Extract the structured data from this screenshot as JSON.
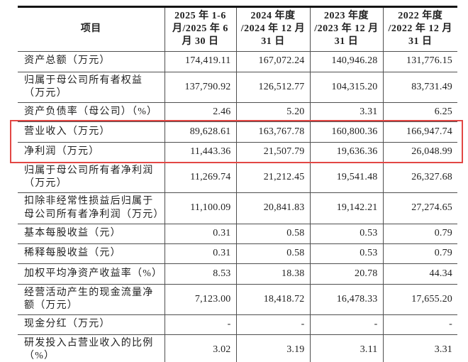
{
  "table": {
    "header": {
      "item_col": "项目",
      "period_cols": [
        "2025 年 1-6 月/2025 年 6 月 30 日",
        "2024 年度 /2024 年 12 月 31 日",
        "2023 年度 /2023 年 12 月 31 日",
        "2022 年度 /2022 年 12 月 31 日"
      ]
    },
    "rows": [
      {
        "label": "资产总额（万元）",
        "values": [
          "174,419.11",
          "167,072.24",
          "140,946.28",
          "131,776.15"
        ],
        "highlighted": false
      },
      {
        "label": "归属于母公司所有者权益（万元）",
        "values": [
          "137,790.92",
          "126,512.77",
          "104,315.20",
          "83,731.49"
        ],
        "highlighted": false
      },
      {
        "label": "资产负债率（母公司）（%）",
        "values": [
          "2.46",
          "5.20",
          "3.31",
          "6.25"
        ],
        "highlighted": false
      },
      {
        "label": "营业收入（万元）",
        "values": [
          "89,628.61",
          "163,767.78",
          "160,800.36",
          "166,947.74"
        ],
        "highlighted": true
      },
      {
        "label": "净利润（万元）",
        "values": [
          "11,443.36",
          "21,507.79",
          "19,636.36",
          "26,048.99"
        ],
        "highlighted": true
      },
      {
        "label": "归属于母公司所有者净利润（万元）",
        "values": [
          "11,269.74",
          "21,212.45",
          "19,541.48",
          "26,327.68"
        ],
        "highlighted": false
      },
      {
        "label": "扣除非经常性损益后归属于母公司所有者净利润（万元）",
        "values": [
          "11,100.09",
          "20,841.83",
          "19,142.21",
          "27,274.65"
        ],
        "highlighted": false
      },
      {
        "label": "基本每股收益（元）",
        "values": [
          "0.31",
          "0.58",
          "0.53",
          "0.79"
        ],
        "highlighted": false
      },
      {
        "label": "稀释每股收益（元）",
        "values": [
          "0.31",
          "0.58",
          "0.53",
          "0.79"
        ],
        "highlighted": false
      },
      {
        "label": "加权平均净资产收益率（%）",
        "values": [
          "8.53",
          "18.38",
          "20.78",
          "44.34"
        ],
        "highlighted": false
      },
      {
        "label": "经营活动产生的现金流量净额（万元）",
        "values": [
          "7,123.00",
          "18,418.72",
          "16,478.33",
          "17,655.20"
        ],
        "highlighted": false
      },
      {
        "label": "现金分红（万元）",
        "values": [
          "-",
          "-",
          "-",
          "-"
        ],
        "highlighted": false
      },
      {
        "label": "研发投入占营业收入的比例（%）",
        "values": [
          "3.02",
          "3.19",
          "3.11",
          "3.31"
        ],
        "highlighted": false
      }
    ]
  },
  "highlight": {
    "color": "#e24744",
    "note_rows": [
      "营业收入（万元）",
      "净利润（万元）"
    ]
  }
}
